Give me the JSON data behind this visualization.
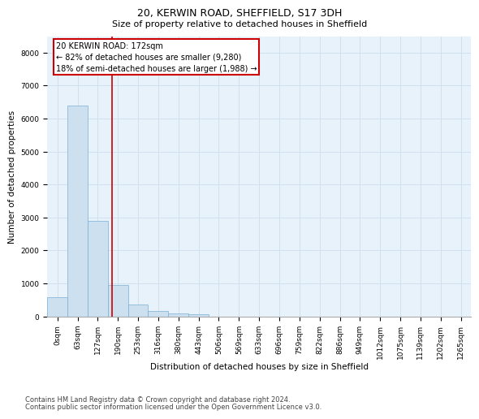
{
  "title1": "20, KERWIN ROAD, SHEFFIELD, S17 3DH",
  "title2": "Size of property relative to detached houses in Sheffield",
  "xlabel": "Distribution of detached houses by size in Sheffield",
  "ylabel": "Number of detached properties",
  "footnote1": "Contains HM Land Registry data © Crown copyright and database right 2024.",
  "footnote2": "Contains public sector information licensed under the Open Government Licence v3.0.",
  "bar_color": "#cce0f0",
  "bar_edge_color": "#7bafd4",
  "annotation_box_color": "#cc0000",
  "vline_color": "#cc0000",
  "grid_color": "#d0e0ef",
  "background_color": "#e8f2fb",
  "fig_background": "#ffffff",
  "categories": [
    "0sqm",
    "63sqm",
    "127sqm",
    "190sqm",
    "253sqm",
    "316sqm",
    "380sqm",
    "443sqm",
    "506sqm",
    "569sqm",
    "633sqm",
    "696sqm",
    "759sqm",
    "822sqm",
    "886sqm",
    "949sqm",
    "1012sqm",
    "1075sqm",
    "1139sqm",
    "1202sqm",
    "1265sqm"
  ],
  "values": [
    580,
    6400,
    2900,
    960,
    350,
    160,
    100,
    70,
    0,
    0,
    0,
    0,
    0,
    0,
    0,
    0,
    0,
    0,
    0,
    0,
    0
  ],
  "ylim": [
    0,
    8500
  ],
  "yticks": [
    0,
    1000,
    2000,
    3000,
    4000,
    5000,
    6000,
    7000,
    8000
  ],
  "vline_x": 2.72,
  "annotation_text_line1": "20 KERWIN ROAD: 172sqm",
  "annotation_text_line2": "← 82% of detached houses are smaller (9,280)",
  "annotation_text_line3": "18% of semi-detached houses are larger (1,988) →",
  "title1_fontsize": 9,
  "title2_fontsize": 8,
  "axis_label_fontsize": 7.5,
  "tick_fontsize": 6.5,
  "annotation_fontsize": 7,
  "footnote_fontsize": 6
}
